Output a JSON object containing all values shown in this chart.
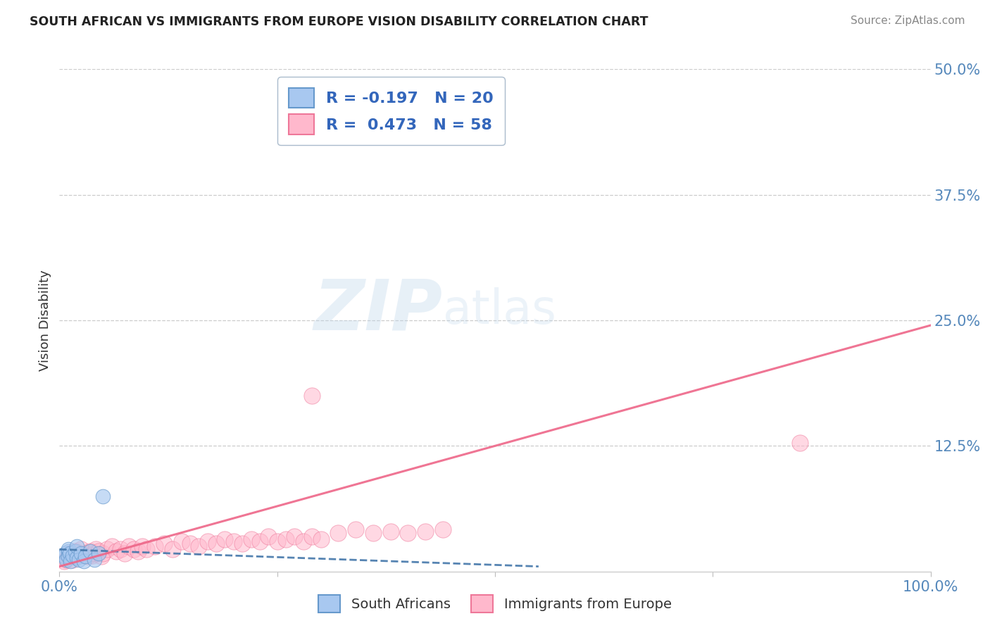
{
  "title": "SOUTH AFRICAN VS IMMIGRANTS FROM EUROPE VISION DISABILITY CORRELATION CHART",
  "source": "Source: ZipAtlas.com",
  "ylabel": "Vision Disability",
  "xlim": [
    0,
    1.0
  ],
  "ylim": [
    0,
    0.5
  ],
  "yticks": [
    0.0,
    0.125,
    0.25,
    0.375,
    0.5
  ],
  "ytick_labels": [
    "",
    "12.5%",
    "25.0%",
    "37.5%",
    "50.0%"
  ],
  "xticks": [
    0.0,
    0.25,
    0.5,
    0.75,
    1.0
  ],
  "xtick_labels": [
    "0.0%",
    "",
    "",
    "",
    "100.0%"
  ],
  "color_blue_fill": "#A8C8F0",
  "color_blue_edge": "#6699CC",
  "color_pink_fill": "#FFB8CC",
  "color_pink_edge": "#EE7799",
  "color_blue_line": "#4477AA",
  "color_pink_line": "#EE6688",
  "color_axis_text": "#5588BB",
  "color_title": "#222222",
  "color_source": "#888888",
  "background_color": "#FFFFFF",
  "sa_trend_x0": 0.0,
  "sa_trend_y0": 0.022,
  "sa_trend_x1": 0.55,
  "sa_trend_y1": 0.005,
  "im_trend_x0": 0.0,
  "im_trend_y0": 0.005,
  "im_trend_x1": 1.0,
  "im_trend_y1": 0.245,
  "south_africans_x": [
    0.005,
    0.007,
    0.008,
    0.01,
    0.01,
    0.01,
    0.012,
    0.013,
    0.015,
    0.018,
    0.02,
    0.02,
    0.022,
    0.025,
    0.028,
    0.03,
    0.035,
    0.04,
    0.045,
    0.05
  ],
  "south_africans_y": [
    0.015,
    0.018,
    0.012,
    0.02,
    0.015,
    0.022,
    0.018,
    0.01,
    0.016,
    0.02,
    0.014,
    0.025,
    0.012,
    0.018,
    0.01,
    0.015,
    0.02,
    0.012,
    0.018,
    0.075
  ],
  "immigrants_x": [
    0.005,
    0.008,
    0.01,
    0.012,
    0.015,
    0.018,
    0.02,
    0.022,
    0.025,
    0.028,
    0.03,
    0.032,
    0.035,
    0.038,
    0.04,
    0.042,
    0.045,
    0.048,
    0.05,
    0.055,
    0.06,
    0.065,
    0.07,
    0.075,
    0.08,
    0.085,
    0.09,
    0.095,
    0.1,
    0.11,
    0.12,
    0.13,
    0.14,
    0.15,
    0.16,
    0.17,
    0.18,
    0.19,
    0.2,
    0.21,
    0.22,
    0.23,
    0.24,
    0.25,
    0.26,
    0.27,
    0.28,
    0.29,
    0.3,
    0.32,
    0.34,
    0.36,
    0.38,
    0.4,
    0.42,
    0.44,
    0.85,
    0.29
  ],
  "immigrants_y": [
    0.01,
    0.012,
    0.015,
    0.018,
    0.012,
    0.02,
    0.015,
    0.018,
    0.022,
    0.016,
    0.018,
    0.015,
    0.02,
    0.016,
    0.018,
    0.022,
    0.02,
    0.015,
    0.018,
    0.022,
    0.025,
    0.02,
    0.022,
    0.018,
    0.025,
    0.022,
    0.02,
    0.025,
    0.022,
    0.025,
    0.028,
    0.022,
    0.03,
    0.028,
    0.025,
    0.03,
    0.028,
    0.032,
    0.03,
    0.028,
    0.032,
    0.03,
    0.035,
    0.03,
    0.032,
    0.035,
    0.03,
    0.035,
    0.032,
    0.038,
    0.042,
    0.038,
    0.04,
    0.038,
    0.04,
    0.042,
    0.128,
    0.175
  ]
}
